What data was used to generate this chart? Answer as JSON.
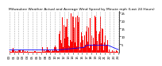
{
  "title": "Milwaukee Weather Actual and Average Wind Speed by Minute mph (Last 24 Hours)",
  "background_color": "#ffffff",
  "bar_color": "#ff0000",
  "line_color": "#0000ff",
  "ylim": [
    0,
    26
  ],
  "yticks": [
    5,
    10,
    15,
    20,
    25
  ],
  "grid_color": "#999999",
  "grid_style": "--",
  "title_fontsize": 3.2,
  "tick_fontsize": 2.8,
  "n_points": 1440,
  "bar_width": 1.0,
  "line_width": 0.6
}
